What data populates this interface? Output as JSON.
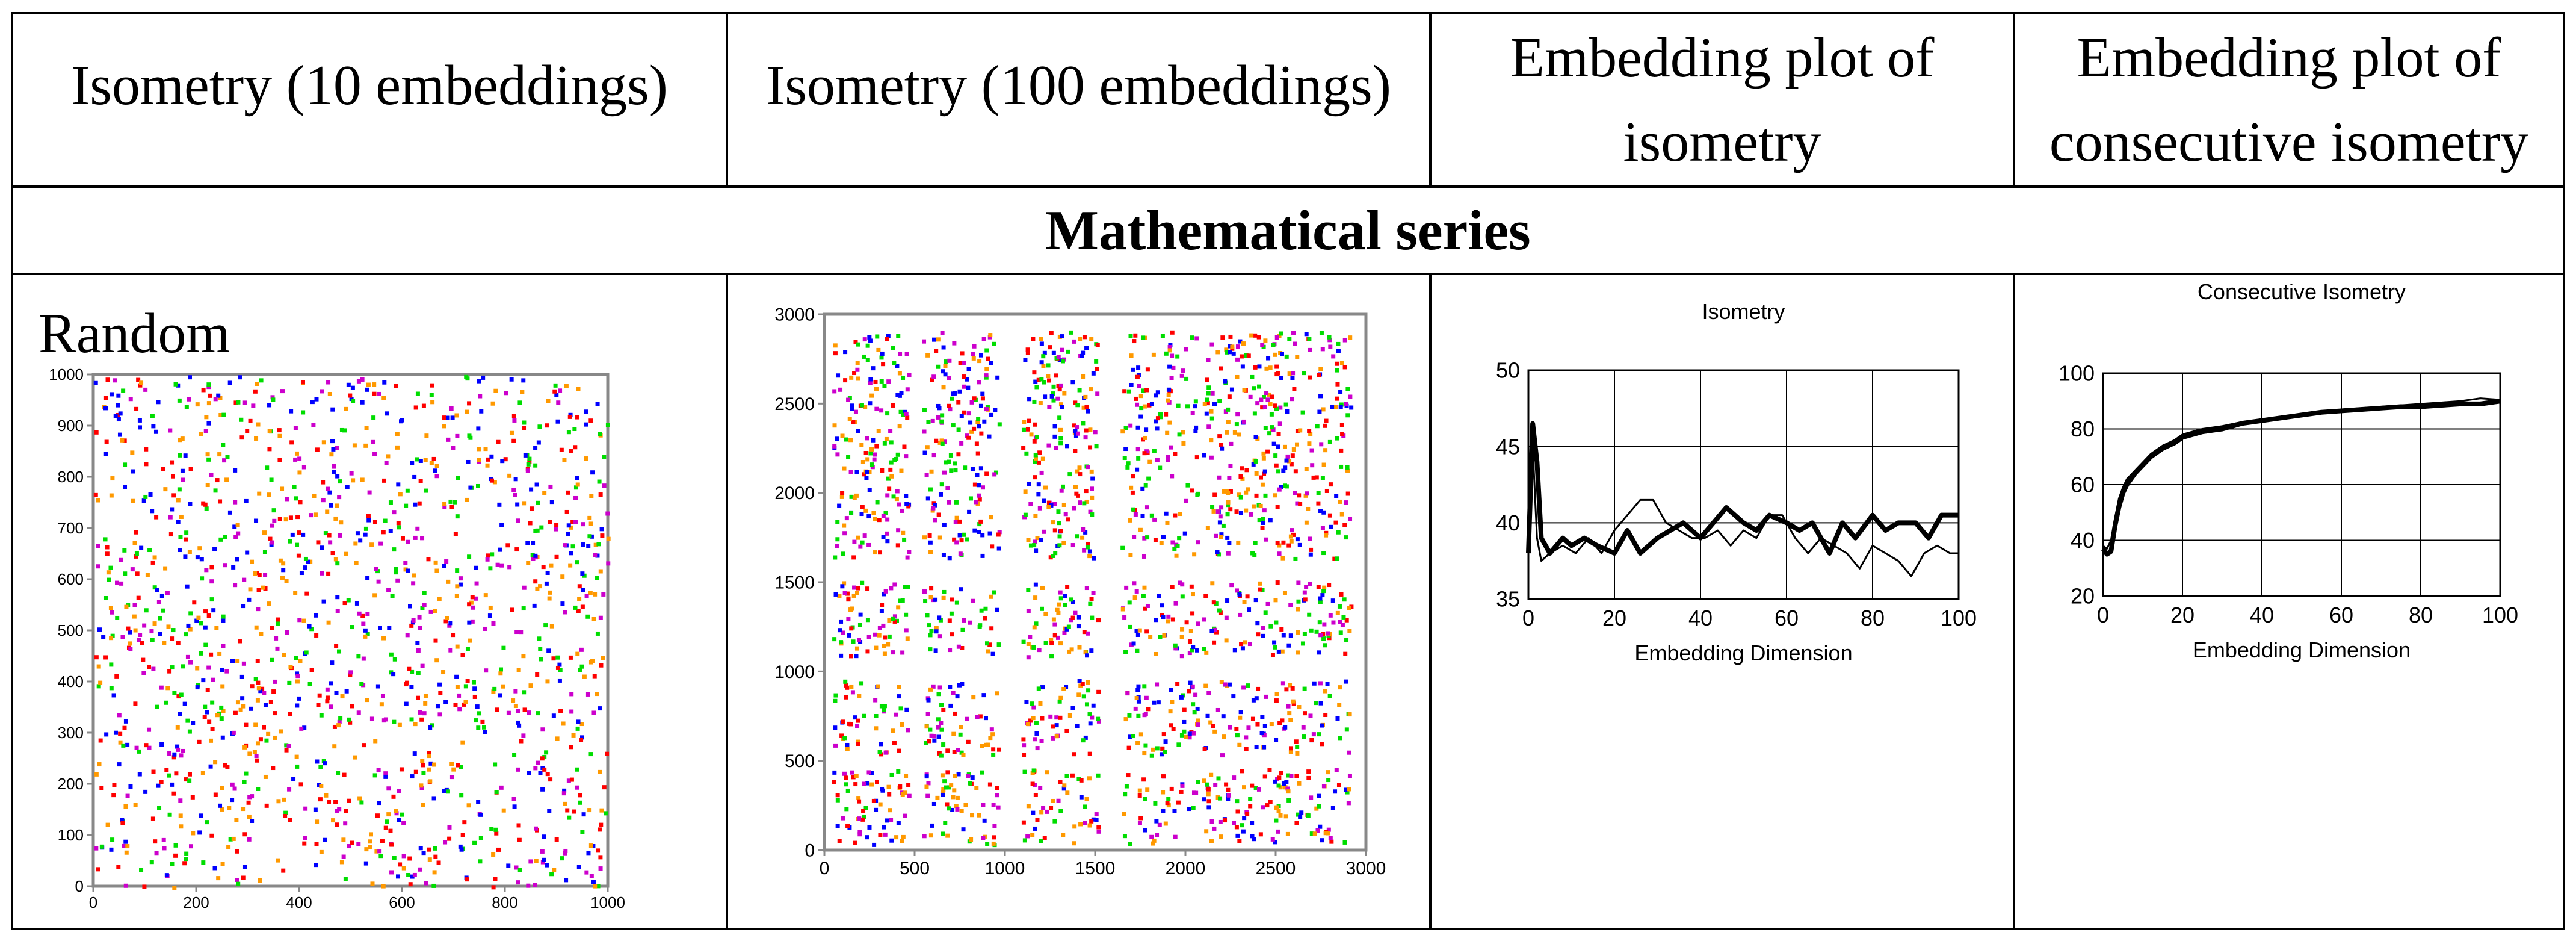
{
  "headers": [
    "Isometry (10 embeddings)",
    "Isometry (100 embeddings)",
    "Embedding plot of isometry",
    "Embedding plot of consecutive isometry"
  ],
  "section_title": "Mathematical series",
  "row_label": "Random",
  "colors": {
    "red": "#ff0000",
    "green": "#00dd00",
    "blue": "#0000ff",
    "orange": "#ff9900",
    "magenta": "#cc00cc",
    "line": "#000000",
    "grid": "#000000"
  },
  "chart_data": [
    {
      "type": "scatter",
      "title": "",
      "xlim": [
        0,
        1000
      ],
      "ylim": [
        0,
        1000
      ],
      "xticks": [
        "0",
        "200",
        "400",
        "600",
        "800",
        "1000"
      ],
      "yticks": [
        "0",
        "100",
        "200",
        "300",
        "400",
        "500",
        "600",
        "700",
        "800",
        "900",
        "1000"
      ],
      "note": "recurrence-style scatter of isometry points, uniformly spread, colored by value",
      "point_count": 1400,
      "series_colors": [
        "red",
        "green",
        "blue",
        "orange",
        "magenta"
      ]
    },
    {
      "type": "scatter",
      "title": "",
      "xlim": [
        0,
        3000
      ],
      "ylim": [
        0,
        3000
      ],
      "xticks": [
        "0",
        "500",
        "1000",
        "1500",
        "2000",
        "2500",
        "3000"
      ],
      "yticks": [
        "0",
        "500",
        "1000",
        "1500",
        "2000",
        "2500",
        "3000"
      ],
      "note": "points cluster in a 6x6 block pattern with gaps",
      "block_centers": [
        250,
        750,
        1300,
        1850,
        2300,
        2700
      ],
      "point_count": 2000,
      "series_colors": [
        "red",
        "green",
        "blue",
        "orange",
        "magenta"
      ]
    },
    {
      "type": "line",
      "title": "Isometry",
      "xlabel": "Embedding Dimension",
      "ylabel": "",
      "xlim": [
        0,
        100
      ],
      "ylim": [
        35,
        50
      ],
      "xticks": [
        "0",
        "20",
        "40",
        "60",
        "80",
        "100"
      ],
      "yticks": [
        "35",
        "40",
        "45",
        "50"
      ],
      "series": [
        {
          "name": "series-thick",
          "stroke": "thick",
          "x": [
            0,
            1,
            2,
            3,
            5,
            8,
            10,
            13,
            16,
            20,
            23,
            26,
            30,
            33,
            36,
            40,
            43,
            46,
            50,
            53,
            56,
            60,
            63,
            66,
            70,
            73,
            76,
            80,
            83,
            86,
            90,
            93,
            96,
            100
          ],
          "y": [
            38,
            46.5,
            44,
            39,
            38,
            39,
            38.5,
            39,
            38.5,
            38,
            39.5,
            38,
            39,
            39.5,
            40,
            39,
            40,
            41,
            40,
            39.5,
            40.5,
            40,
            39.5,
            40,
            38,
            40,
            39,
            40.5,
            39.5,
            40,
            40,
            39,
            40.5,
            40.5
          ]
        },
        {
          "name": "series-thin",
          "stroke": "thin",
          "x": [
            0,
            1,
            2,
            3,
            5,
            8,
            11,
            14,
            17,
            20,
            23,
            26,
            29,
            32,
            35,
            38,
            41,
            44,
            47,
            50,
            53,
            56,
            59,
            62,
            65,
            68,
            71,
            74,
            77,
            80,
            83,
            86,
            89,
            92,
            95,
            98,
            100
          ],
          "y": [
            39,
            45,
            39,
            37.5,
            38,
            38.5,
            38,
            39,
            38,
            39.5,
            40.5,
            41.5,
            41.5,
            40,
            39.5,
            39,
            39,
            39.5,
            38.5,
            39.5,
            39,
            40.5,
            40.5,
            39,
            38,
            39,
            38.5,
            38,
            37,
            38.5,
            38,
            37.5,
            36.5,
            38,
            38.5,
            38,
            38
          ]
        }
      ]
    },
    {
      "type": "line",
      "title": "Consecutive Isometry",
      "xlabel": "Embedding Dimension",
      "ylabel": "",
      "xlim": [
        0,
        100
      ],
      "ylim": [
        20,
        100
      ],
      "xticks": [
        "0",
        "20",
        "40",
        "60",
        "80",
        "100"
      ],
      "yticks": [
        "20",
        "40",
        "60",
        "80",
        "100"
      ],
      "series": [
        {
          "name": "series-thick",
          "stroke": "thick",
          "x": [
            0,
            1,
            2,
            3,
            4,
            5,
            6,
            8,
            10,
            12,
            15,
            18,
            20,
            25,
            30,
            35,
            40,
            45,
            50,
            55,
            60,
            65,
            70,
            75,
            80,
            85,
            90,
            95,
            100
          ],
          "y": [
            37,
            35,
            36,
            45,
            52,
            57,
            60,
            64,
            67,
            70,
            73,
            75,
            77,
            79,
            80,
            82,
            83,
            84,
            85,
            86,
            86.5,
            87,
            87.5,
            88,
            88,
            88.5,
            89,
            89,
            90
          ]
        },
        {
          "name": "series-thin",
          "stroke": "thin",
          "x": [
            0,
            1,
            2,
            3,
            4,
            5,
            6,
            8,
            10,
            12,
            15,
            18,
            20,
            25,
            30,
            35,
            40,
            45,
            50,
            55,
            60,
            65,
            70,
            75,
            80,
            85,
            90,
            95,
            100
          ],
          "y": [
            38,
            37,
            40,
            48,
            55,
            59,
            62,
            65,
            68,
            71,
            74,
            76,
            78,
            80,
            81,
            82.5,
            83.5,
            84.5,
            85.5,
            86,
            87,
            87.5,
            88,
            88.5,
            89,
            89.5,
            90,
            91,
            90.5
          ]
        }
      ]
    }
  ]
}
